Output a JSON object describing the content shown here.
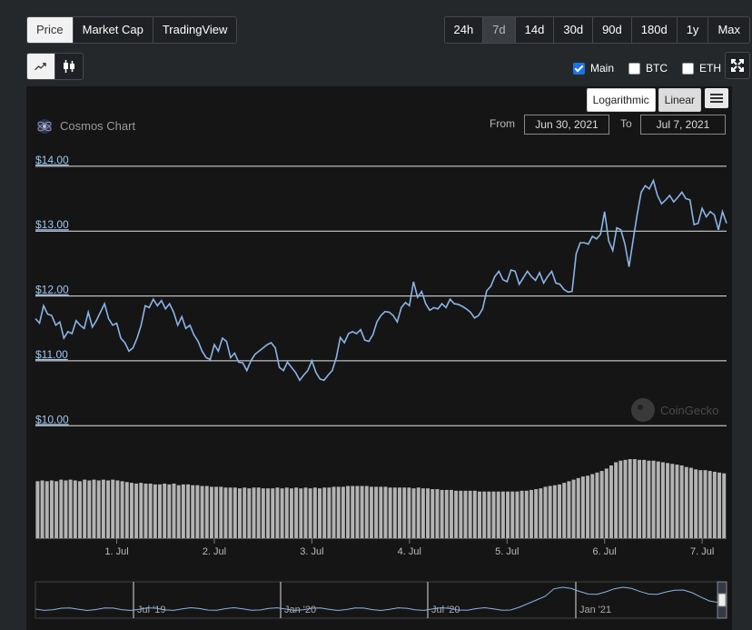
{
  "tabs": [
    "Price",
    "Market Cap",
    "TradingView"
  ],
  "ranges": [
    "24h",
    "7d",
    "14d",
    "30d",
    "90d",
    "180d",
    "1y",
    "Max"
  ],
  "active_range": "7d",
  "series_toggles": [
    {
      "label": "Main",
      "checked": true
    },
    {
      "label": "BTC",
      "checked": false
    },
    {
      "label": "ETH",
      "checked": false
    }
  ],
  "scale": {
    "log_label": "Logarithmic",
    "linear_label": "Linear"
  },
  "chart_title": "Cosmos Chart",
  "from_label": "From",
  "to_label": "To",
  "from_date": "Jun 30, 2021",
  "to_date": "Jul 7, 2021",
  "watermark": "CoinGecko",
  "colors": {
    "line": "#8ab4e8",
    "volume": "#b3b3b3",
    "grid": "#e6e6e6",
    "axis_label": "#9ec7f0"
  },
  "chart_data": {
    "type": "line",
    "title": "Cosmos Chart",
    "y_ticks": [
      "$14.00",
      "$13.00",
      "$12.00",
      "$11.00",
      "$10.00"
    ],
    "y_tick_values": [
      14,
      13,
      12,
      11,
      10
    ],
    "ylim": [
      9.85,
      14.25
    ],
    "x_ticks": [
      "1. Jul",
      "2. Jul",
      "3. Jul",
      "4. Jul",
      "5. Jul",
      "6. Jul",
      "7. Jul"
    ],
    "x_tick_hours": [
      20,
      44,
      68,
      92,
      116,
      140,
      164
    ],
    "x_range_hours": [
      0,
      170
    ],
    "price_series": [
      [
        0,
        11.65
      ],
      [
        1,
        11.58
      ],
      [
        2,
        11.85
      ],
      [
        3,
        11.72
      ],
      [
        4,
        11.7
      ],
      [
        5,
        11.55
      ],
      [
        6,
        11.6
      ],
      [
        7,
        11.35
      ],
      [
        8,
        11.45
      ],
      [
        9,
        11.42
      ],
      [
        10,
        11.62
      ],
      [
        11,
        11.55
      ],
      [
        12,
        11.5
      ],
      [
        13,
        11.75
      ],
      [
        14,
        11.52
      ],
      [
        15,
        11.62
      ],
      [
        16,
        11.75
      ],
      [
        17,
        11.88
      ],
      [
        18,
        11.65
      ],
      [
        19,
        11.55
      ],
      [
        20,
        11.58
      ],
      [
        21,
        11.35
      ],
      [
        22,
        11.28
      ],
      [
        23,
        11.15
      ],
      [
        24,
        11.2
      ],
      [
        25,
        11.35
      ],
      [
        26,
        11.55
      ],
      [
        27,
        11.85
      ],
      [
        28,
        11.82
      ],
      [
        29,
        11.95
      ],
      [
        30,
        11.85
      ],
      [
        31,
        11.93
      ],
      [
        32,
        11.8
      ],
      [
        33,
        11.88
      ],
      [
        34,
        11.75
      ],
      [
        35,
        11.55
      ],
      [
        36,
        11.68
      ],
      [
        37,
        11.5
      ],
      [
        38,
        11.55
      ],
      [
        39,
        11.4
      ],
      [
        40,
        11.3
      ],
      [
        41,
        11.15
      ],
      [
        42,
        11.05
      ],
      [
        43,
        11.02
      ],
      [
        44,
        11.25
      ],
      [
        45,
        11.15
      ],
      [
        46,
        11.35
      ],
      [
        47,
        11.3
      ],
      [
        48,
        11.05
      ],
      [
        49,
        11.12
      ],
      [
        50,
        10.98
      ],
      [
        51,
        10.97
      ],
      [
        52,
        10.85
      ],
      [
        53,
        11.0
      ],
      [
        54,
        11.1
      ],
      [
        55,
        11.15
      ],
      [
        56,
        11.2
      ],
      [
        57,
        11.25
      ],
      [
        58,
        11.28
      ],
      [
        59,
        11.2
      ],
      [
        60,
        10.9
      ],
      [
        61,
        10.85
      ],
      [
        62,
        10.98
      ],
      [
        63,
        10.9
      ],
      [
        64,
        10.82
      ],
      [
        65,
        10.7
      ],
      [
        66,
        10.78
      ],
      [
        67,
        10.85
      ],
      [
        68,
        11.0
      ],
      [
        69,
        10.82
      ],
      [
        70,
        10.72
      ],
      [
        71,
        10.7
      ],
      [
        72,
        10.78
      ],
      [
        73,
        10.85
      ],
      [
        74,
        11.05
      ],
      [
        75,
        11.36
      ],
      [
        76,
        11.28
      ],
      [
        77,
        11.42
      ],
      [
        78,
        11.45
      ],
      [
        79,
        11.42
      ],
      [
        80,
        11.48
      ],
      [
        81,
        11.32
      ],
      [
        82,
        11.3
      ],
      [
        83,
        11.4
      ],
      [
        84,
        11.6
      ],
      [
        85,
        11.7
      ],
      [
        86,
        11.76
      ],
      [
        87,
        11.75
      ],
      [
        88,
        11.7
      ],
      [
        89,
        11.6
      ],
      [
        90,
        11.82
      ],
      [
        91,
        11.9
      ],
      [
        92,
        11.85
      ],
      [
        93,
        12.22
      ],
      [
        94,
        11.98
      ],
      [
        95,
        12.07
      ],
      [
        96,
        11.88
      ],
      [
        97,
        11.78
      ],
      [
        98,
        11.82
      ],
      [
        99,
        11.8
      ],
      [
        100,
        11.88
      ],
      [
        101,
        11.82
      ],
      [
        102,
        11.95
      ],
      [
        103,
        11.88
      ],
      [
        104,
        11.87
      ],
      [
        105,
        11.84
      ],
      [
        106,
        11.8
      ],
      [
        107,
        11.75
      ],
      [
        108,
        11.66
      ],
      [
        109,
        11.7
      ],
      [
        110,
        11.8
      ],
      [
        111,
        12.08
      ],
      [
        112,
        12.15
      ],
      [
        113,
        12.3
      ],
      [
        114,
        12.38
      ],
      [
        115,
        12.25
      ],
      [
        116,
        12.22
      ],
      [
        117,
        12.4
      ],
      [
        118,
        12.38
      ],
      [
        119,
        12.18
      ],
      [
        120,
        12.28
      ],
      [
        121,
        12.38
      ],
      [
        122,
        12.3
      ],
      [
        123,
        12.24
      ],
      [
        124,
        12.36
      ],
      [
        125,
        12.2
      ],
      [
        126,
        12.3
      ],
      [
        127,
        12.38
      ],
      [
        128,
        12.2
      ],
      [
        129,
        12.18
      ],
      [
        130,
        12.1
      ],
      [
        131,
        12.06
      ],
      [
        132,
        12.07
      ],
      [
        133,
        12.65
      ],
      [
        134,
        12.82
      ],
      [
        135,
        12.82
      ],
      [
        136,
        12.8
      ],
      [
        137,
        12.92
      ],
      [
        138,
        12.88
      ],
      [
        139,
        12.95
      ],
      [
        140,
        13.3
      ],
      [
        141,
        12.85
      ],
      [
        142,
        12.7
      ],
      [
        143,
        13.05
      ],
      [
        144,
        13.02
      ],
      [
        145,
        12.8
      ],
      [
        146,
        12.45
      ],
      [
        147,
        12.85
      ],
      [
        148,
        13.25
      ],
      [
        149,
        13.6
      ],
      [
        150,
        13.7
      ],
      [
        151,
        13.65
      ],
      [
        152,
        13.78
      ],
      [
        153,
        13.55
      ],
      [
        154,
        13.42
      ],
      [
        155,
        13.48
      ],
      [
        156,
        13.55
      ],
      [
        157,
        13.45
      ],
      [
        158,
        13.52
      ],
      [
        159,
        13.6
      ],
      [
        160,
        13.5
      ],
      [
        161,
        13.48
      ],
      [
        162,
        13.1
      ],
      [
        163,
        13.12
      ],
      [
        164,
        13.35
      ],
      [
        165,
        13.22
      ],
      [
        166,
        13.3
      ],
      [
        167,
        13.25
      ],
      [
        168,
        13.02
      ],
      [
        169,
        13.3
      ],
      [
        170,
        13.12
      ]
    ],
    "volume_ylim": [
      0,
      1
    ],
    "volume_series": [
      0.72,
      0.73,
      0.72,
      0.73,
      0.72,
      0.74,
      0.73,
      0.74,
      0.73,
      0.72,
      0.74,
      0.73,
      0.74,
      0.73,
      0.74,
      0.73,
      0.74,
      0.73,
      0.72,
      0.71,
      0.7,
      0.69,
      0.7,
      0.69,
      0.69,
      0.68,
      0.68,
      0.69,
      0.68,
      0.69,
      0.67,
      0.68,
      0.68,
      0.67,
      0.67,
      0.66,
      0.66,
      0.65,
      0.65,
      0.65,
      0.64,
      0.64,
      0.64,
      0.63,
      0.64,
      0.63,
      0.64,
      0.64,
      0.63,
      0.63,
      0.63,
      0.64,
      0.63,
      0.64,
      0.63,
      0.64,
      0.63,
      0.64,
      0.63,
      0.64,
      0.63,
      0.64,
      0.64,
      0.65,
      0.65,
      0.65,
      0.66,
      0.66,
      0.66,
      0.66,
      0.66,
      0.65,
      0.65,
      0.65,
      0.65,
      0.64,
      0.64,
      0.64,
      0.64,
      0.64,
      0.63,
      0.64,
      0.63,
      0.63,
      0.62,
      0.62,
      0.61,
      0.61,
      0.61,
      0.6,
      0.6,
      0.6,
      0.6,
      0.6,
      0.59,
      0.59,
      0.59,
      0.59,
      0.59,
      0.59,
      0.59,
      0.59,
      0.59,
      0.6,
      0.6,
      0.61,
      0.62,
      0.63,
      0.65,
      0.66,
      0.67,
      0.68,
      0.7,
      0.72,
      0.74,
      0.76,
      0.78,
      0.79,
      0.81,
      0.83,
      0.85,
      0.88,
      0.92,
      0.96,
      0.98,
      0.99,
      1.0,
      1.0,
      0.99,
      0.99,
      0.98,
      0.98,
      0.97,
      0.96,
      0.95,
      0.94,
      0.93,
      0.92,
      0.9,
      0.89,
      0.87,
      0.86,
      0.86,
      0.85,
      0.84,
      0.83,
      0.82
    ],
    "navigator_labels": [
      "Jul '19",
      "Jan '20",
      "Jul '20",
      "Jan '21"
    ]
  }
}
